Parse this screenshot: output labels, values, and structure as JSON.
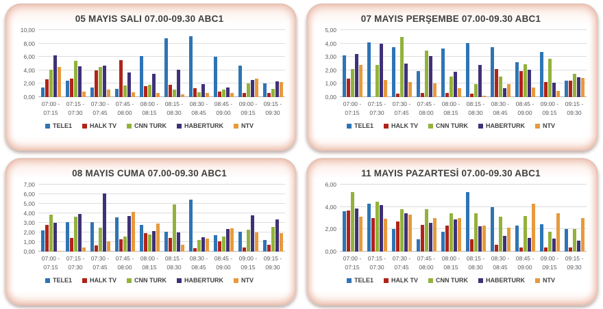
{
  "page": {
    "background": "#ffffff"
  },
  "chart_data": [
    {
      "type": "bar",
      "title": "05 MAYIS SALI 07.00-09.30 ABC1",
      "xlabel": "",
      "ylabel": "",
      "ylim": [
        0,
        10
      ],
      "ystep": 2,
      "grid": true,
      "legend_position": "bottom",
      "tick_decimal_separator": ",",
      "categories": [
        [
          "07:00 -",
          "07:15"
        ],
        [
          "07:15 -",
          "07:30"
        ],
        [
          "07:30 -",
          "07:45"
        ],
        [
          "07:45 -",
          "08:00"
        ],
        [
          "08:00 -",
          "08:15"
        ],
        [
          "08:15 -",
          "08:30"
        ],
        [
          "08:30 -",
          "08:45"
        ],
        [
          "08:45 -",
          "09:00"
        ],
        [
          "09:00 -",
          "09:15"
        ],
        [
          "09:15 -",
          "09:30"
        ]
      ],
      "series": [
        {
          "name": "TELE1",
          "color": "#2E74B5",
          "values": [
            1.4,
            2.5,
            1.4,
            1.2,
            6.1,
            8.8,
            9.1,
            6.0,
            4.7,
            2.0
          ]
        },
        {
          "name": "HALK TV",
          "color": "#B02318",
          "values": [
            2.7,
            2.8,
            4.0,
            5.5,
            1.6,
            1.8,
            1.3,
            0.8,
            0.6,
            0.6
          ]
        },
        {
          "name": "CNN TURK",
          "color": "#93B23C",
          "values": [
            4.1,
            5.4,
            4.5,
            1.7,
            1.8,
            1.1,
            0.7,
            1.1,
            2.0,
            1.2
          ]
        },
        {
          "name": "HABERTURK",
          "color": "#3F3178",
          "values": [
            6.2,
            4.6,
            4.7,
            3.7,
            3.5,
            4.1,
            1.9,
            1.4,
            2.6,
            2.3
          ]
        },
        {
          "name": "NTV",
          "color": "#E79A3C",
          "values": [
            4.5,
            0.8,
            1.1,
            0.7,
            0.6,
            0.4,
            0.6,
            0.6,
            2.8,
            2.2
          ]
        }
      ]
    },
    {
      "type": "bar",
      "title": "07 MAYIS PERŞEMBE 07.00-09.30 ABC1",
      "xlabel": "",
      "ylabel": "",
      "ylim": [
        0,
        5
      ],
      "ystep": 1,
      "grid": true,
      "legend_position": "bottom",
      "tick_decimal_separator": ",",
      "categories": [
        [
          "07:00 -",
          "07:15"
        ],
        [
          "07:15 -",
          "07:30"
        ],
        [
          "07:30 -",
          "07:45"
        ],
        [
          "07:45 -",
          "08:00"
        ],
        [
          "08:00 -",
          "08:15"
        ],
        [
          "08:15 -",
          "08:30"
        ],
        [
          "08:30 -",
          "08:45"
        ],
        [
          "08:45 -",
          "09:00"
        ],
        [
          "09:00 -",
          "09:15"
        ],
        [
          "09:15 -",
          "09:30"
        ]
      ],
      "series": [
        {
          "name": "TELE1",
          "color": "#2E74B5",
          "values": [
            3.1,
            4.1,
            3.7,
            1.95,
            3.6,
            4.05,
            3.75,
            2.6,
            3.35,
            1.2
          ]
        },
        {
          "name": "HALK TV",
          "color": "#B02318",
          "values": [
            1.4,
            0,
            0.25,
            0.3,
            0.3,
            0.25,
            2.1,
            1.95,
            1.1,
            1.25
          ]
        },
        {
          "name": "CNN TURK",
          "color": "#93B23C",
          "values": [
            2.1,
            2.4,
            4.5,
            3.45,
            1.55,
            0.95,
            1.55,
            2.45,
            2.85,
            1.75
          ]
        },
        {
          "name": "HABERTURK",
          "color": "#3F3178",
          "values": [
            3.2,
            4.0,
            2.5,
            3.05,
            1.9,
            2.4,
            0.65,
            2.05,
            1.05,
            1.5
          ]
        },
        {
          "name": "NTV",
          "color": "#E79A3C",
          "values": [
            2.4,
            1.3,
            1.1,
            1.0,
            0.65,
            0.1,
            0.95,
            0.7,
            0.45,
            1.45
          ]
        }
      ]
    },
    {
      "type": "bar",
      "title": "08 MAYIS CUMA 07.00-09.30 ABC1",
      "xlabel": "",
      "ylabel": "",
      "ylim": [
        0,
        7
      ],
      "ystep": 1,
      "grid": true,
      "legend_position": "bottom",
      "tick_decimal_separator": ",",
      "categories": [
        [
          "07:00 -",
          "07:15"
        ],
        [
          "07:15 -",
          "07:30"
        ],
        [
          "07:30 -",
          "07:45"
        ],
        [
          "07:45 -",
          "08:00"
        ],
        [
          "08:00 -",
          "08:15"
        ],
        [
          "08:15 -",
          "08:30"
        ],
        [
          "08:30 -",
          "08:45"
        ],
        [
          "08:45 -",
          "09:00"
        ],
        [
          "09:00 -",
          "09:15"
        ],
        [
          "09:15 -",
          "09:30"
        ]
      ],
      "series": [
        {
          "name": "TELE1",
          "color": "#2E74B5",
          "values": [
            2.2,
            3.1,
            3.05,
            3.55,
            2.8,
            2.05,
            5.4,
            1.7,
            2.05,
            1.25
          ]
        },
        {
          "name": "HALK TV",
          "color": "#B02318",
          "values": [
            2.8,
            1.45,
            0.65,
            1.3,
            1.9,
            1.4,
            0.35,
            1.05,
            0.4,
            0.7
          ]
        },
        {
          "name": "CNN TURK",
          "color": "#93B23C",
          "values": [
            3.85,
            3.65,
            2.5,
            1.55,
            1.8,
            4.95,
            1.25,
            1.6,
            2.3,
            2.55
          ]
        },
        {
          "name": "HABERTURK",
          "color": "#3F3178",
          "values": [
            3.0,
            3.95,
            6.1,
            3.75,
            2.15,
            2.0,
            1.5,
            2.35,
            3.8,
            3.35
          ]
        },
        {
          "name": "NTV",
          "color": "#E79A3C",
          "values": [
            0.05,
            0.45,
            1.05,
            4.15,
            2.95,
            0.75,
            1.35,
            2.4,
            2.0,
            1.9
          ]
        }
      ]
    },
    {
      "type": "bar",
      "title": "11 MAYIS PAZARTESİ 07.00-09.30 ABC1",
      "xlabel": "",
      "ylabel": "",
      "ylim": [
        0,
        6
      ],
      "ystep": 2,
      "grid": true,
      "legend_position": "bottom",
      "tick_decimal_separator": ",",
      "categories": [
        [
          "07:00 -",
          "07:15"
        ],
        [
          "07:15 -",
          "07:30"
        ],
        [
          "07:30 -",
          "07:45"
        ],
        [
          "07:45 -",
          "08:00"
        ],
        [
          "08:00 -",
          "08:15"
        ],
        [
          "08:15 -",
          "08:30"
        ],
        [
          "08:30 -",
          "08:45"
        ],
        [
          "08:45 -",
          "09:00"
        ],
        [
          "09:00 -",
          "09:15"
        ],
        [
          "09:15 -",
          "09:30"
        ]
      ],
      "series": [
        {
          "name": "TELE1",
          "color": "#2E74B5",
          "values": [
            3.6,
            4.3,
            2.05,
            1.1,
            1.8,
            5.3,
            3.95,
            2.35,
            2.45,
            2.05
          ]
        },
        {
          "name": "HALK TV",
          "color": "#B02318",
          "values": [
            3.65,
            3.0,
            2.7,
            2.4,
            2.35,
            1.1,
            0.6,
            0.35,
            0.35,
            0.35
          ]
        },
        {
          "name": "CNN TURK",
          "color": "#93B23C",
          "values": [
            5.35,
            4.5,
            3.8,
            3.8,
            3.45,
            3.45,
            3.15,
            3.2,
            1.75,
            2.0
          ]
        },
        {
          "name": "HABERTURK",
          "color": "#3F3178",
          "values": [
            3.85,
            4.15,
            3.45,
            2.55,
            2.9,
            2.25,
            1.4,
            1.2,
            1.15,
            1.0
          ]
        },
        {
          "name": "NTV",
          "color": "#E79A3C",
          "values": [
            3.15,
            2.95,
            3.3,
            3.0,
            3.0,
            2.3,
            2.15,
            4.3,
            3.45,
            3.0
          ]
        }
      ]
    }
  ]
}
